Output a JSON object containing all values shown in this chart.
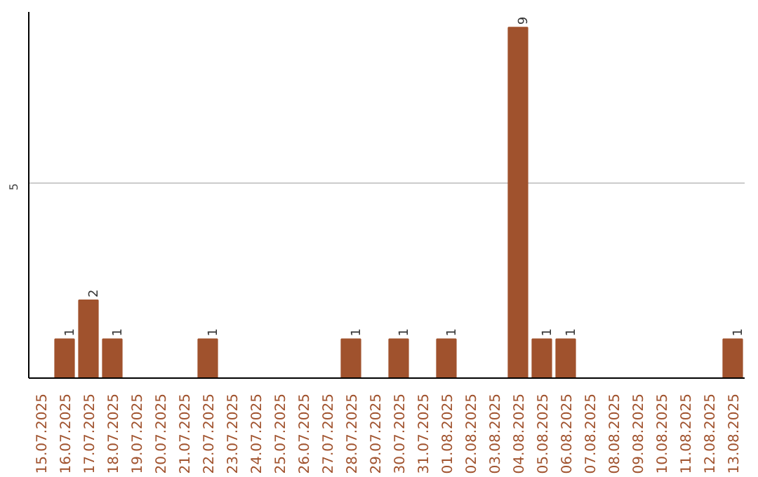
{
  "chart_data": {
    "type": "bar",
    "categories": [
      "15.07.2025",
      "16.07.2025",
      "17.07.2025",
      "18.07.2025",
      "19.07.2025",
      "20.07.2025",
      "21.07.2025",
      "22.07.2025",
      "23.07.2025",
      "24.07.2025",
      "25.07.2025",
      "26.07.2025",
      "27.07.2025",
      "28.07.2025",
      "29.07.2025",
      "30.07.2025",
      "31.07.2025",
      "01.08.2025",
      "02.08.2025",
      "03.08.2025",
      "04.08.2025",
      "05.08.2025",
      "06.08.2025",
      "07.08.2025",
      "08.08.2025",
      "09.08.2025",
      "10.08.2025",
      "11.08.2025",
      "12.08.2025",
      "13.08.2025"
    ],
    "values": [
      0,
      1,
      2,
      1,
      0,
      0,
      0,
      1,
      0,
      0,
      0,
      0,
      0,
      1,
      0,
      1,
      0,
      1,
      0,
      0,
      9,
      1,
      1,
      0,
      0,
      0,
      0,
      0,
      0,
      1
    ],
    "value_labels": [
      null,
      "1",
      "2",
      "1",
      null,
      null,
      null,
      "1",
      null,
      null,
      null,
      null,
      null,
      "1",
      null,
      "1",
      null,
      "1",
      null,
      null,
      "9",
      "1",
      "1",
      null,
      null,
      null,
      null,
      null,
      null,
      "1"
    ],
    "color": "#a0522d",
    "ylim": [
      0,
      9.4
    ],
    "yticks": [
      5
    ],
    "grid": "y"
  }
}
